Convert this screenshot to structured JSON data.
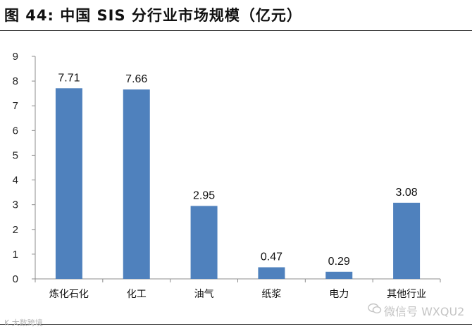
{
  "figure": {
    "title": "图 44:  中国 SIS 分行业市场规模（亿元）"
  },
  "chart_data": {
    "type": "bar",
    "categories": [
      "炼化石化",
      "化工",
      "油气",
      "纸浆",
      "电力",
      "其他行业"
    ],
    "values": [
      7.71,
      7.66,
      2.95,
      0.47,
      0.29,
      3.08
    ],
    "data_labels": [
      "7.71",
      "7.66",
      "2.95",
      "0.47",
      "0.29",
      "3.08"
    ],
    "ylim": [
      0,
      9
    ],
    "yticks": [
      "0",
      "1",
      "2",
      "3",
      "4",
      "5",
      "6",
      "7",
      "8",
      "9"
    ],
    "xlabel": "",
    "ylabel": "",
    "grid": false,
    "bar_color": "#4f81bd"
  },
  "watermarks": {
    "left": "K 大数跨境",
    "right": "微信号 WXQU2"
  },
  "icons": {
    "wechat": "wechat-icon"
  }
}
